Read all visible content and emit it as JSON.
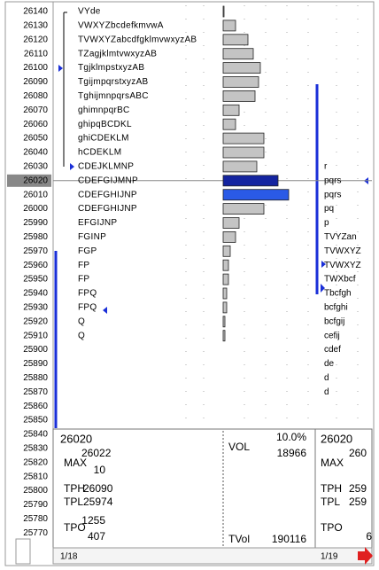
{
  "prices": [
    26140,
    26130,
    26120,
    26110,
    26100,
    26090,
    26080,
    26070,
    26060,
    26050,
    26040,
    26030,
    26020,
    26010,
    26000,
    25990,
    25980,
    25970,
    25960,
    25950,
    25940,
    25930,
    25920,
    25910,
    25900,
    25890,
    25880,
    25870,
    25860,
    25850,
    25840,
    25830,
    25820,
    25810,
    25800,
    25790,
    25780,
    25770
  ],
  "tpo": [
    "VYde",
    "VWXYZbcdefkmvwA",
    "TVWXYZabcdfgklmvwxyzAB",
    "TZagjklmtvwxyzAB",
    "TgjklmpstxyzAB",
    "TgijmpqrstxyzAB",
    "TghijmnpqrsABC",
    "ghimnpqrBC",
    "ghipqBCDKL",
    "ghiCDEKLM",
    "hCDEKLM",
    "CDEJKLMNP",
    "CDEFGIJMNP",
    "CDEFGHIJNP",
    "CDEFGHIJNP",
    "EFGIJNP",
    "FGINP",
    "FGP",
    "FP",
    "FP",
    "FPQ",
    "FPQ",
    "Q",
    "Q"
  ],
  "volume": [
    1,
    14,
    28,
    34,
    42,
    40,
    36,
    18,
    14,
    46,
    46,
    38,
    62,
    74,
    46,
    18,
    14,
    8,
    6,
    6,
    4,
    4,
    2,
    2
  ],
  "right": [
    null,
    null,
    null,
    null,
    null,
    null,
    null,
    null,
    null,
    null,
    null,
    "r",
    "pqrs",
    "pqrs",
    "pq",
    "p",
    "TVYZan",
    "TVWXYZ",
    "TVWXYZ",
    "TWXbcf",
    "Tbcfgh",
    "bcfghi",
    "bcfgij",
    "cefij",
    "cdef",
    "de",
    "d",
    "d"
  ],
  "summary": {
    "left": {
      "price": "26020",
      "max_label": "MAX",
      "max": "26022",
      "max_sub": "10",
      "tph_label": "TPH",
      "tph": "26090",
      "tpl_label": "TPL",
      "tpl": "25974",
      "tpo_label": "TPO",
      "tpo": "1255",
      "tpo_sub": "407"
    },
    "middle": {
      "vol_label": "VOL",
      "pct": "10.0%",
      "vol": "18966",
      "tvol_label": "TVol",
      "tvol": "190116"
    },
    "right": {
      "price": "26020",
      "max_label": "MAX",
      "max": "260",
      "tph_label": "TPH",
      "tph": "259",
      "tpl_label": "TPL",
      "tpl": "259",
      "tpo_label": "TPO",
      "tpo": "6"
    }
  },
  "footer": {
    "left": "1/18",
    "right": "1/19"
  }
}
